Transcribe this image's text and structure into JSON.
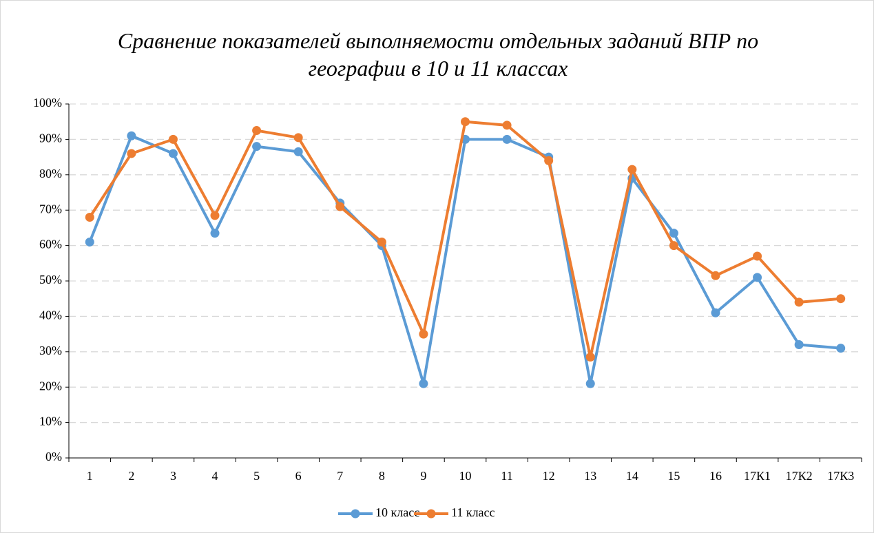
{
  "chart_data": {
    "type": "line",
    "title": "Сравнение показателей выполняемости отдельных заданий ВПР по географии в 10 и 11 классах",
    "categories": [
      "1",
      "2",
      "3",
      "4",
      "5",
      "6",
      "7",
      "8",
      "9",
      "10",
      "11",
      "12",
      "13",
      "14",
      "15",
      "16",
      "17К1",
      "17К2",
      "17К3"
    ],
    "series": [
      {
        "name": "10 класс",
        "color": "#5b9bd5",
        "values": [
          61,
          91,
          86,
          63.5,
          88,
          86.5,
          72,
          60,
          21,
          90,
          90,
          85,
          21,
          79,
          63.5,
          41,
          51,
          32,
          31
        ]
      },
      {
        "name": "11 класс",
        "color": "#ed7d31",
        "values": [
          68,
          86,
          90,
          68.5,
          92.5,
          90.5,
          71,
          61,
          35,
          95,
          94,
          84,
          28.5,
          81.5,
          60,
          51.5,
          57,
          44,
          45
        ]
      }
    ],
    "ylim": [
      0,
      100
    ],
    "yticks": [
      {
        "value": 0,
        "label": "0%"
      },
      {
        "value": 10,
        "label": "10%"
      },
      {
        "value": 20,
        "label": "20%"
      },
      {
        "value": 30,
        "label": "30%"
      },
      {
        "value": 40,
        "label": "40%"
      },
      {
        "value": 50,
        "label": "50%"
      },
      {
        "value": 60,
        "label": "60%"
      },
      {
        "value": 70,
        "label": "70%"
      },
      {
        "value": 80,
        "label": "80%"
      },
      {
        "value": 90,
        "label": "90%"
      },
      {
        "value": 100,
        "label": "100%"
      }
    ],
    "grid": true,
    "legend": "bottom"
  }
}
